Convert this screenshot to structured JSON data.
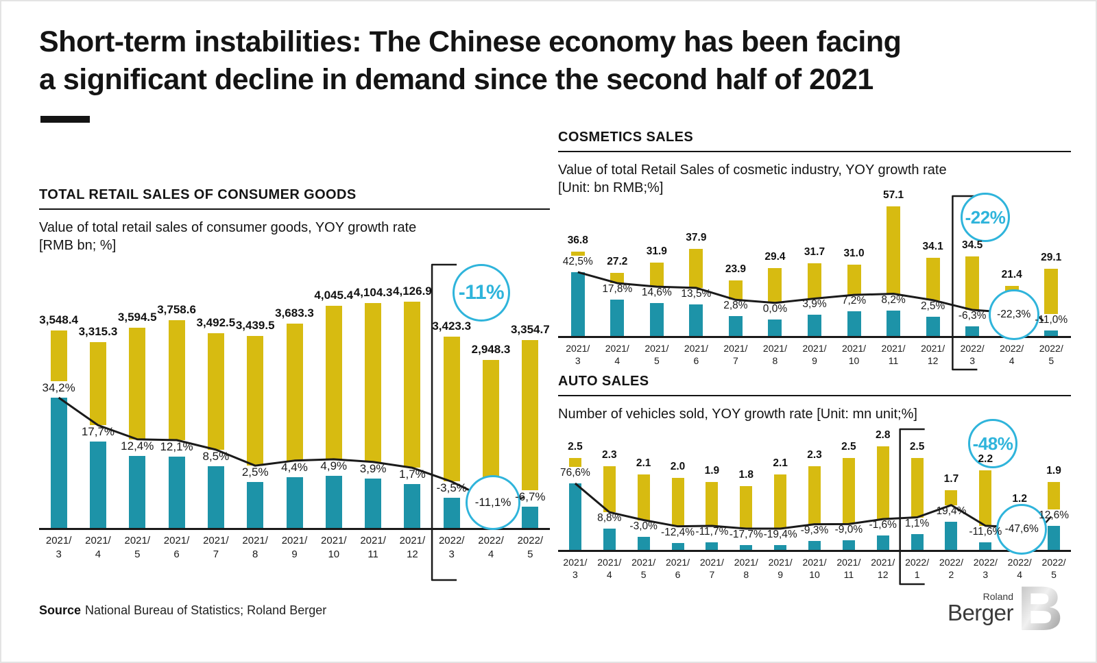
{
  "page": {
    "title_line1": "Short-term instabilities: The Chinese economy has been facing",
    "title_line2": "a significant decline in demand since the second half of 2021"
  },
  "colors": {
    "bar_value": "#d7bb11",
    "bar_growth": "#1d93a8",
    "highlight": "#2fb4db",
    "trend_line": "#1a1a1a"
  },
  "source": {
    "label": "Source",
    "text": "National Bureau of Statistics; Roland Berger"
  },
  "logo": {
    "roland": "Roland",
    "berger": "Berger",
    "mark": "B"
  },
  "chart_data": [
    {
      "id": "total-retail-sales",
      "type": "bar",
      "title": "TOTAL RETAIL SALES OF CONSUMER GOODS",
      "subtitle": "Value of total retail sales of consumer goods, YOY growth rate",
      "unit": "[RMB bn; %]",
      "legend": "none",
      "grid": false,
      "categories": [
        "2021/3",
        "2021/4",
        "2021/5",
        "2021/6",
        "2021/7",
        "2021/8",
        "2021/9",
        "2021/10",
        "2021/11",
        "2021/12",
        "2022/3",
        "2022/4",
        "2022/5"
      ],
      "series": [
        {
          "name": "Retail sales value",
          "unit": "RMB bn",
          "color_key": "bar_value",
          "values": [
            3548.4,
            3315.3,
            3594.5,
            3758.6,
            3492.5,
            3439.5,
            3683.3,
            4045.4,
            4104.3,
            4126.9,
            3423.3,
            2948.3,
            3354.7
          ],
          "labels": [
            "3,548.4",
            "3,315.3",
            "3,594.5",
            "3,758.6",
            "3,492.5",
            "3,439.5",
            "3,683.3",
            "4,045.4",
            "4,104.3",
            "4,126.9",
            "3,423.3",
            "2,948.3",
            "3,354.7"
          ]
        },
        {
          "name": "YOY growth rate",
          "unit": "%",
          "color_key": "bar_growth",
          "values": [
            34.2,
            17.7,
            12.4,
            12.1,
            8.5,
            2.5,
            4.4,
            4.9,
            3.9,
            1.7,
            -3.5,
            -11.1,
            -6.7
          ],
          "labels": [
            "34,2%",
            "17,7%",
            "12,4%",
            "12,1%",
            "8,5%",
            "2,5%",
            "4,4%",
            "4,9%",
            "3,9%",
            "1,7%",
            "-3,5%",
            "-11,1%",
            "-6,7%"
          ]
        }
      ],
      "highlight": {
        "annotation_text": "-11%",
        "circled_index": 11,
        "circled_category": "2022/4",
        "circled_label": "-11,1%",
        "bracket_index": 10
      }
    },
    {
      "id": "cosmetics-sales",
      "type": "bar",
      "title": "COSMETICS SALES",
      "subtitle": "Value of total Retail Sales of cosmetic industry, YOY growth rate",
      "unit": "[Unit: bn RMB;%]",
      "legend": "none",
      "grid": false,
      "categories": [
        "2021/3",
        "2021/4",
        "2021/5",
        "2021/6",
        "2021/7",
        "2021/8",
        "2021/9",
        "2021/10",
        "2021/11",
        "2021/12",
        "2022/3",
        "2022/4",
        "2022/5"
      ],
      "series": [
        {
          "name": "Retail sales of cosmetic industry",
          "unit": "bn RMB",
          "color_key": "bar_value",
          "values": [
            36.8,
            27.2,
            31.9,
            37.9,
            23.9,
            29.4,
            31.7,
            31.0,
            57.1,
            34.1,
            34.5,
            21.4,
            29.1
          ],
          "labels": [
            "36.8",
            "27.2",
            "31.9",
            "37.9",
            "23.9",
            "29.4",
            "31.7",
            "31.0",
            "57.1",
            "34.1",
            "34.5",
            "21.4",
            "29.1"
          ]
        },
        {
          "name": "YOY growth rate",
          "unit": "%",
          "color_key": "bar_growth",
          "values": [
            42.5,
            17.8,
            14.6,
            13.5,
            2.8,
            0.0,
            3.9,
            7.2,
            8.2,
            2.5,
            -6.3,
            -22.3,
            -11.0
          ],
          "labels": [
            "42,5%",
            "17,8%",
            "14,6%",
            "13,5%",
            "2,8%",
            "0,0%",
            "3,9%",
            "7,2%",
            "8,2%",
            "2,5%",
            "-6,3%",
            "-22,3%",
            "-11,0%"
          ]
        }
      ],
      "highlight": {
        "annotation_text": "-22%",
        "circled_index": 11,
        "circled_category": "2022/4",
        "circled_label": "-22,3%",
        "bracket_index": 10
      }
    },
    {
      "id": "auto-sales",
      "type": "bar",
      "title": "AUTO SALES",
      "subtitle": "Number of vehicles sold, YOY growth rate [Unit: mn unit;%]",
      "unit": "",
      "legend": "none",
      "grid": false,
      "categories": [
        "2021/3",
        "2021/4",
        "2021/5",
        "2021/6",
        "2021/7",
        "2021/8",
        "2021/9",
        "2021/10",
        "2021/11",
        "2021/12",
        "2022/1",
        "2022/2",
        "2022/3",
        "2022/4",
        "2022/5"
      ],
      "series": [
        {
          "name": "Vehicles sold",
          "unit": "mn unit",
          "color_key": "bar_value",
          "values": [
            2.5,
            2.3,
            2.1,
            2.0,
            1.9,
            1.8,
            2.1,
            2.3,
            2.5,
            2.8,
            2.5,
            1.7,
            2.2,
            1.2,
            1.9
          ],
          "labels": [
            "2.5",
            "2.3",
            "2.1",
            "2.0",
            "1.9",
            "1.8",
            "2.1",
            "2.3",
            "2.5",
            "2.8",
            "2.5",
            "1.7",
            "2.2",
            "1.2",
            "1.9"
          ]
        },
        {
          "name": "YOY growth rate",
          "unit": "%",
          "color_key": "bar_growth",
          "values": [
            76.6,
            8.8,
            -3.0,
            -12.4,
            -11.7,
            -17.7,
            -19.4,
            -9.3,
            -9.0,
            -1.6,
            1.1,
            19.4,
            -11.6,
            -47.6,
            12.6
          ],
          "labels": [
            "76,6%",
            "8,8%",
            "-3,0%",
            "-12,4%",
            "-11,7%",
            "-17,7%",
            "-19,4%",
            "-9,3%",
            "-9,0%",
            "-1,6%",
            "1,1%",
            "19,4%",
            "-11,6%",
            "-47,6%",
            "12,6%"
          ]
        }
      ],
      "highlight": {
        "annotation_text": "-48%",
        "circled_index": 13,
        "circled_category": "2022/4",
        "circled_label": "-47,6%",
        "bracket_index": 10
      }
    }
  ]
}
